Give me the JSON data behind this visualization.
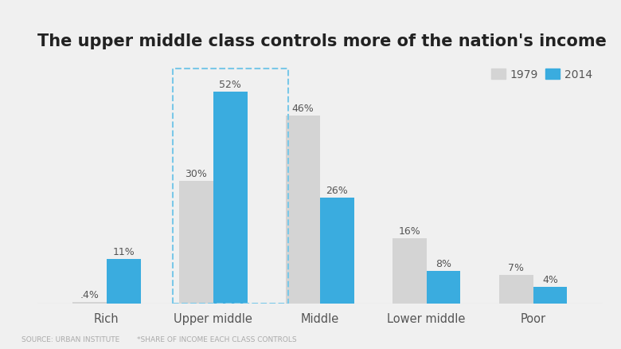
{
  "title": "The upper middle class controls more of the nation's income",
  "categories": [
    "Rich",
    "Upper middle",
    "Middle",
    "Lower middle",
    "Poor"
  ],
  "values_1979": [
    0.4,
    30,
    46,
    16,
    7
  ],
  "values_2014": [
    11,
    52,
    26,
    8,
    4
  ],
  "labels_1979": [
    ".4%",
    "30%",
    "46%",
    "16%",
    "7%"
  ],
  "labels_2014": [
    "11%",
    "52%",
    "26%",
    "8%",
    "4%"
  ],
  "color_1979": "#d4d4d4",
  "color_2014": "#3aacdf",
  "background_color": "#f0f0f0",
  "title_fontsize": 15,
  "bar_width": 0.32,
  "highlight_group": 1,
  "source_text": "SOURCE: URBAN INSTITUTE",
  "footnote_text": "*SHARE OF INCOME EACH CLASS CONTROLS",
  "legend_labels": [
    "1979",
    "2014"
  ],
  "ylim": [
    0,
    60
  ]
}
